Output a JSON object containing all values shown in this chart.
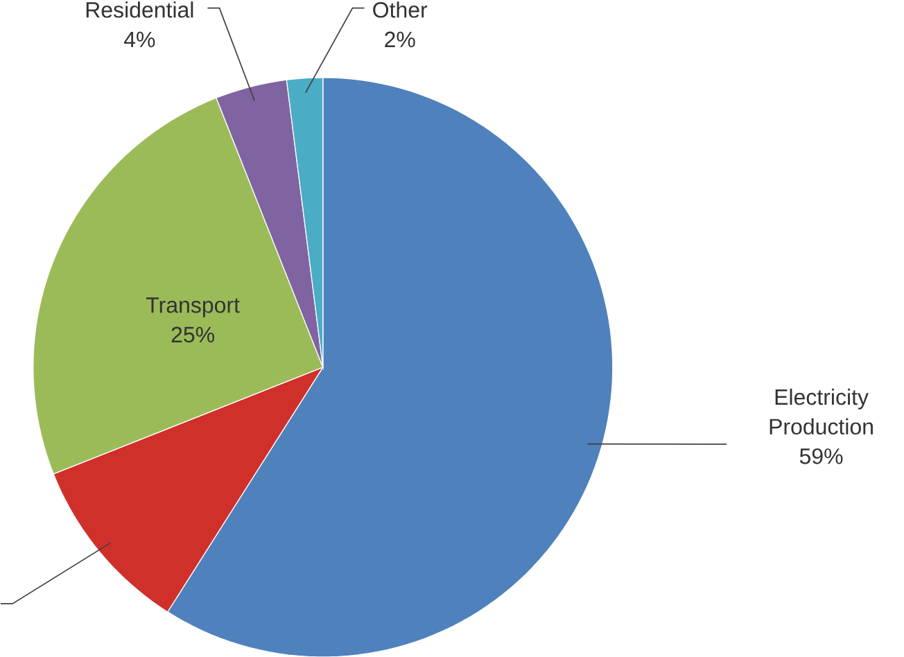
{
  "chart_data": {
    "type": "pie",
    "categories": [
      "Electricity Production",
      null,
      "Transport",
      "Residential",
      "Other"
    ],
    "values": [
      59,
      10,
      25,
      4,
      2
    ],
    "colors": [
      "#4f81bd",
      "#d0302a",
      "#9bbb59",
      "#8064a2",
      "#4bacc6"
    ],
    "value_labels": [
      "59%",
      null,
      "25%",
      "4%",
      "2%"
    ]
  }
}
